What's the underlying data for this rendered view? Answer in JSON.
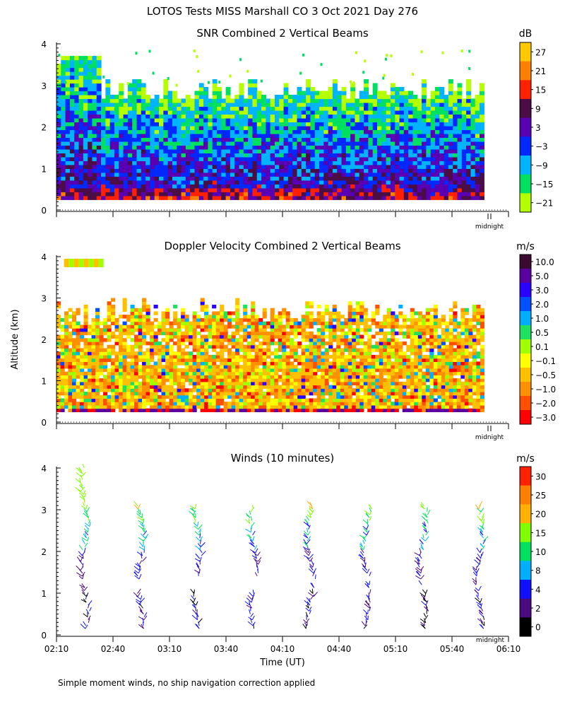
{
  "page_title": "LOTOS Tests MISS Marshall CO   3 Oct 2021 Day 276",
  "footnote": "Simple moment winds, no ship navigation correction applied",
  "shared": {
    "ylabel": "Altitude (km)",
    "xlabel": "Time (UT)",
    "midnight_label": "midnight",
    "y_ticks": [
      "0",
      "1",
      "2",
      "3",
      "4"
    ],
    "x_ticks": [
      "02:10",
      "02:40",
      "03:10",
      "03:40",
      "04:10",
      "04:40",
      "05:10",
      "05:40",
      "06:10"
    ],
    "xlim": [
      "02:10",
      "06:10"
    ],
    "ylim": [
      0,
      4
    ]
  },
  "chart_data": [
    {
      "type": "heatmap",
      "title": "SNR Combined 2 Vertical Beams",
      "unit": "dB",
      "colorbar_labels": [
        "27",
        "21",
        "15",
        "9",
        "3",
        "−3",
        "−9",
        "−15",
        "−21"
      ],
      "colors": [
        "#ffc800",
        "#ff8000",
        "#ff2000",
        "#4a0d45",
        "#5a00b4",
        "#0028ff",
        "#00b4ff",
        "#00e060",
        "#b4ff00"
      ],
      "value_range": [
        -24,
        30
      ],
      "data_altitude_km": [
        0.25,
        3.0
      ]
    },
    {
      "type": "heatmap",
      "title": "Doppler Velocity Combined 2 Vertical Beams",
      "unit": "m/s",
      "colorbar_labels": [
        "10.0",
        "5.0",
        "3.0",
        "2.0",
        "1.0",
        "0.5",
        "0.1",
        "−0.1",
        "−0.5",
        "−1.0",
        "−2.0",
        "−3.0"
      ],
      "colors": [
        "#3a0a30",
        "#5a00a0",
        "#2a00ff",
        "#0050ff",
        "#00b0ff",
        "#20e060",
        "#a0ff00",
        "#ffff00",
        "#ffc000",
        "#ff9000",
        "#ff5000",
        "#ff0000"
      ],
      "data_altitude_km": [
        0.25,
        3.0
      ]
    },
    {
      "type": "wind_barbs",
      "title": "Winds (10 minutes)",
      "unit": "m/s",
      "colorbar_labels": [
        "30",
        "25",
        "20",
        "15",
        "10",
        "8",
        "4",
        "2",
        "0"
      ],
      "colors": [
        "#ff2000",
        "#ff8000",
        "#ffb000",
        "#80ff00",
        "#00e060",
        "#00b0ff",
        "#1010ff",
        "#4a0a80",
        "#000000"
      ],
      "profile_times": [
        "02:25",
        "02:55",
        "03:25",
        "03:55",
        "04:25",
        "04:55",
        "05:25",
        "05:55"
      ]
    }
  ]
}
